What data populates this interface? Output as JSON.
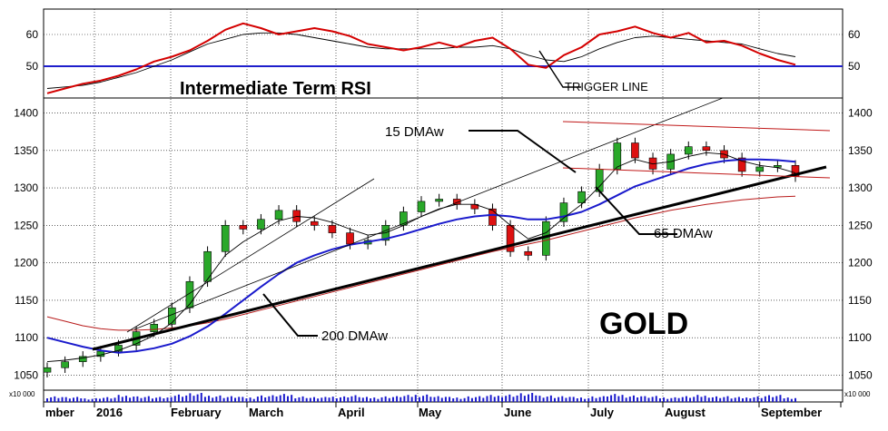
{
  "chart_data": {
    "type": "candlestick",
    "title": "GOLD",
    "x_labels": [
      "mber",
      "2016",
      "February",
      "March",
      "April",
      "May",
      "June",
      "July",
      "August",
      "September"
    ],
    "rsi_panel": {
      "label": "Intermediate Term RSI",
      "ylim": [
        40,
        68
      ],
      "yticks": [
        50,
        60
      ],
      "trigger_label": "TRIGGER LINE",
      "trigger_level": 50,
      "rsi_values": [
        41.5,
        43,
        44.5,
        45.5,
        47,
        49,
        51.5,
        53,
        55,
        58,
        61.5,
        63.5,
        62,
        60,
        61,
        62,
        61,
        59.5,
        57,
        56,
        55,
        56,
        57.5,
        56,
        58,
        59,
        55.5,
        50.5,
        49.5,
        53.5,
        56,
        60,
        61,
        62.5,
        60.5,
        59,
        60.5,
        57.5,
        58,
        56.5,
        54,
        52,
        50.5
      ],
      "trigger_values": [
        43,
        43.5,
        44,
        45,
        46.5,
        48,
        50,
        52,
        54.5,
        57,
        58.5,
        60,
        60.5,
        60.5,
        60,
        59,
        58,
        57,
        56,
        55.5,
        55.5,
        55.5,
        55.5,
        56,
        56,
        56.5,
        55.5,
        53.5,
        52,
        51.5,
        53,
        55.5,
        57.5,
        59,
        59.5,
        59,
        58.5,
        58,
        57.5,
        57,
        55.5,
        54,
        53
      ]
    },
    "price_panel": {
      "ylim": [
        1030,
        1420
      ],
      "yticks": [
        1050,
        1100,
        1150,
        1200,
        1250,
        1300,
        1350,
        1400
      ],
      "close_values": [
        1060,
        1068,
        1075,
        1082,
        1090,
        1108,
        1118,
        1140,
        1175,
        1215,
        1250,
        1245,
        1258,
        1270,
        1255,
        1250,
        1240,
        1225,
        1230,
        1250,
        1268,
        1282,
        1285,
        1278,
        1272,
        1250,
        1215,
        1210,
        1255,
        1280,
        1295,
        1325,
        1360,
        1340,
        1325,
        1345,
        1355,
        1350,
        1340,
        1322,
        1328,
        1330,
        1315
      ],
      "ma15_values": [
        1068,
        1070,
        1073,
        1077,
        1083,
        1092,
        1103,
        1120,
        1145,
        1178,
        1210,
        1228,
        1242,
        1256,
        1262,
        1260,
        1254,
        1245,
        1237,
        1240,
        1250,
        1262,
        1272,
        1278,
        1278,
        1270,
        1250,
        1232,
        1240,
        1260,
        1278,
        1302,
        1328,
        1338,
        1332,
        1335,
        1342,
        1347,
        1345,
        1336,
        1330,
        1327,
        1320
      ],
      "ma65_values": [
        1100,
        1094,
        1088,
        1083,
        1080,
        1082,
        1086,
        1092,
        1102,
        1115,
        1132,
        1150,
        1168,
        1185,
        1200,
        1210,
        1218,
        1224,
        1228,
        1232,
        1238,
        1245,
        1252,
        1258,
        1262,
        1264,
        1262,
        1258,
        1258,
        1262,
        1268,
        1278,
        1290,
        1302,
        1310,
        1318,
        1326,
        1332,
        1336,
        1338,
        1338,
        1337,
        1335
      ],
      "ma200_values": [
        1128,
        1122,
        1116,
        1112,
        1110,
        1110,
        1111,
        1113,
        1116,
        1120,
        1125,
        1131,
        1137,
        1143,
        1149,
        1155,
        1161,
        1167,
        1173,
        1179,
        1185,
        1191,
        1197,
        1203,
        1209,
        1215,
        1220,
        1225,
        1230,
        1236,
        1242,
        1248,
        1254,
        1260,
        1265,
        1270,
        1274,
        1278,
        1281,
        1284,
        1286,
        1288,
        1289
      ],
      "annotations": [
        "15 DMAw",
        "65 DMAw",
        "200 DMAw"
      ]
    },
    "volume_label": "x10 000",
    "volume_values": [
      6,
      5,
      4,
      5,
      7,
      6,
      5,
      8,
      9,
      7,
      6,
      5,
      7,
      8,
      6,
      5,
      6,
      7,
      5,
      6,
      7,
      8,
      6,
      5,
      6,
      7,
      8,
      9,
      7,
      6,
      5,
      6,
      8,
      7,
      6,
      5,
      6,
      7,
      6,
      5,
      6,
      7,
      5
    ]
  }
}
